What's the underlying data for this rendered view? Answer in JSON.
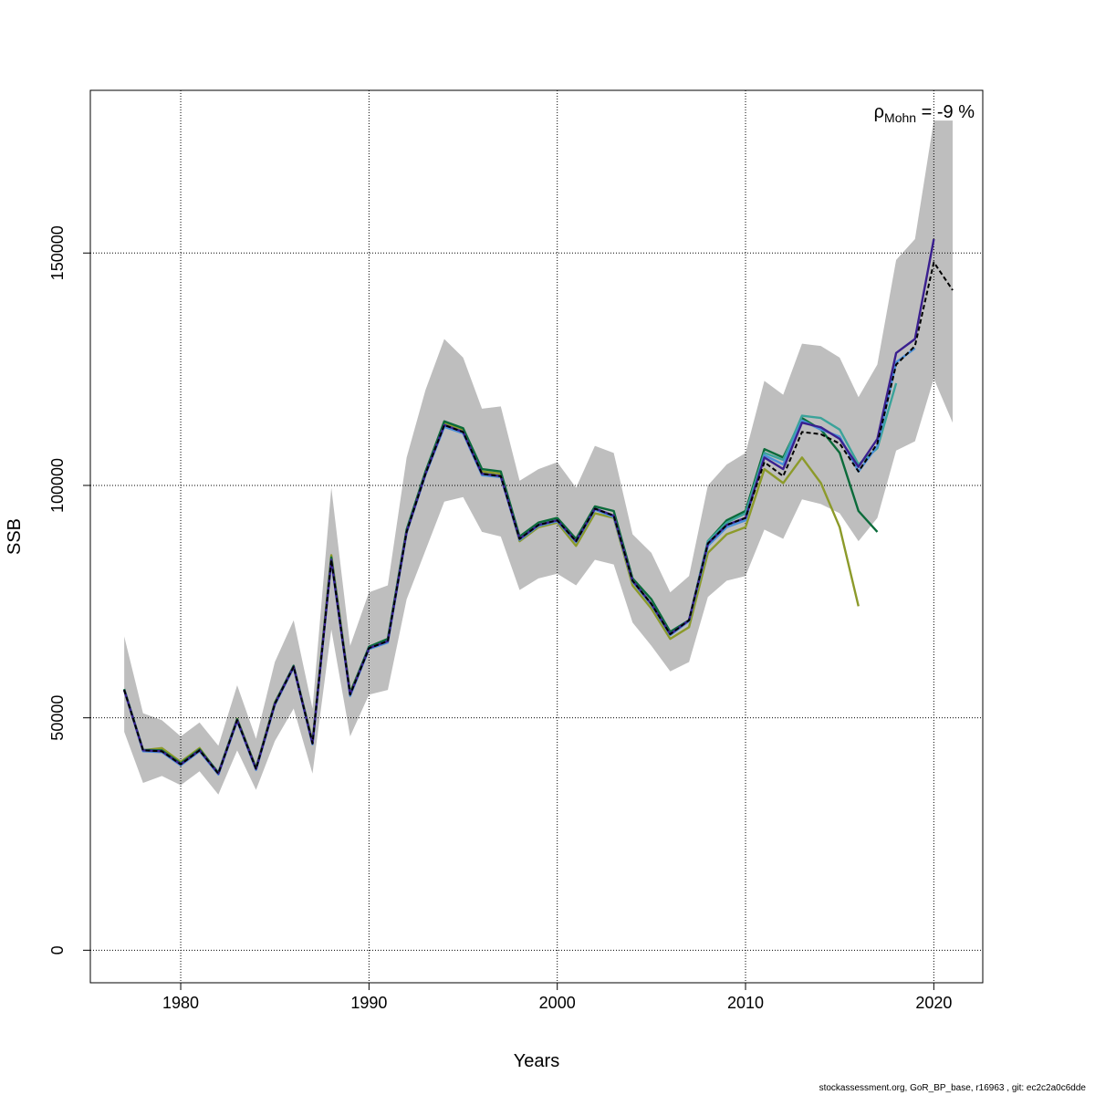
{
  "chart_data": {
    "type": "line",
    "xlabel": "Years",
    "ylabel": "SSB",
    "xlim": [
      1975.2,
      2022.6
    ],
    "ylim": [
      -7000,
      185000
    ],
    "x_ticks": [
      1980,
      1990,
      2000,
      2010,
      2020
    ],
    "y_ticks": [
      0,
      50000,
      100000,
      150000
    ],
    "x_tick_labels": [
      "1980",
      "1990",
      "2000",
      "2010",
      "2020"
    ],
    "y_tick_labels": [
      "0",
      "50000",
      "100000",
      "150000"
    ],
    "grid": true,
    "annotation": {
      "rho_symbol": "ρ",
      "rho_subscript": "Mohn",
      "rho_text": " = -9 %"
    },
    "confidence_band": {
      "color": "#bebebe",
      "x": [
        1977,
        1978,
        1979,
        1980,
        1981,
        1982,
        1983,
        1984,
        1985,
        1986,
        1987,
        1988,
        1989,
        1990,
        1991,
        1992,
        1993,
        1994,
        1995,
        1996,
        1997,
        1998,
        1999,
        2000,
        2001,
        2002,
        2003,
        2004,
        2005,
        2006,
        2007,
        2008,
        2009,
        2010,
        2011,
        2012,
        2013,
        2014,
        2015,
        2016,
        2017,
        2018,
        2019,
        2020,
        2021
      ],
      "upper": [
        67500,
        51000,
        49500,
        46000,
        49000,
        44000,
        57000,
        45500,
        62000,
        71000,
        52000,
        99500,
        65500,
        77000,
        78500,
        106000,
        120500,
        131500,
        127500,
        116500,
        117000,
        101000,
        103500,
        105000,
        99500,
        108500,
        107000,
        89500,
        85500,
        77000,
        80500,
        100000,
        104500,
        107000,
        122500,
        119500,
        130500,
        130000,
        127500,
        119000,
        126000,
        148500,
        153000,
        178500,
        178500
      ],
      "lower": [
        47000,
        36000,
        37500,
        35500,
        38500,
        33500,
        43000,
        34500,
        45000,
        52000,
        38000,
        69000,
        46000,
        55000,
        56000,
        75500,
        86000,
        96500,
        97500,
        90000,
        89000,
        77500,
        80000,
        81000,
        78500,
        84000,
        83000,
        70500,
        65500,
        60000,
        62000,
        76000,
        79500,
        80500,
        90500,
        88500,
        97000,
        96000,
        94000,
        88000,
        93000,
        107500,
        109500,
        123000,
        113500
      ]
    },
    "series": [
      {
        "color": "#000000",
        "dashed": true,
        "x": [
          1977,
          1978,
          1979,
          1980,
          1981,
          1982,
          1983,
          1984,
          1985,
          1986,
          1987,
          1988,
          1989,
          1990,
          1991,
          1992,
          1993,
          1994,
          1995,
          1996,
          1997,
          1998,
          1999,
          2000,
          2001,
          2002,
          2003,
          2004,
          2005,
          2006,
          2007,
          2008,
          2009,
          2010,
          2011,
          2012,
          2013,
          2014,
          2015,
          2016,
          2017,
          2018,
          2019,
          2020,
          2021
        ],
        "y": [
          56000,
          43000,
          42800,
          40000,
          43000,
          38000,
          49500,
          39000,
          53000,
          61000,
          44500,
          84000,
          55000,
          65000,
          66500,
          90000,
          102500,
          113000,
          111500,
          102500,
          102000,
          88500,
          91500,
          92500,
          88000,
          95000,
          93500,
          79500,
          74500,
          68000,
          71000,
          87500,
          91500,
          93000,
          105000,
          102000,
          111500,
          111000,
          109000,
          103000,
          109000,
          126000,
          130000,
          148000,
          142000
        ]
      },
      {
        "color": "#3a1f8f",
        "x": [
          1977,
          1978,
          1979,
          1980,
          1981,
          1982,
          1983,
          1984,
          1985,
          1986,
          1987,
          1988,
          1989,
          1990,
          1991,
          1992,
          1993,
          1994,
          1995,
          1996,
          1997,
          1998,
          1999,
          2000,
          2001,
          2002,
          2003,
          2004,
          2005,
          2006,
          2007,
          2008,
          2009,
          2010,
          2011,
          2012,
          2013,
          2014,
          2015,
          2016,
          2017,
          2018,
          2019,
          2020
        ],
        "y": [
          56000,
          43000,
          42800,
          40000,
          43000,
          38000,
          49500,
          39000,
          53000,
          61000,
          44500,
          84000,
          55000,
          65000,
          66500,
          90000,
          102500,
          113000,
          111500,
          102500,
          102000,
          88500,
          91500,
          92500,
          88000,
          95000,
          93500,
          79500,
          74500,
          68000,
          71000,
          87500,
          91500,
          93000,
          106000,
          103500,
          113500,
          112500,
          110000,
          104000,
          110000,
          128500,
          131500,
          153000
        ]
      },
      {
        "color": "#4a90d9",
        "x": [
          1977,
          1978,
          1979,
          1980,
          1981,
          1982,
          1983,
          1984,
          1985,
          1986,
          1987,
          1988,
          1989,
          1990,
          1991,
          1992,
          1993,
          1994,
          1995,
          1996,
          1997,
          1998,
          1999,
          2000,
          2001,
          2002,
          2003,
          2004,
          2005,
          2006,
          2007,
          2008,
          2009,
          2010,
          2011,
          2012,
          2013,
          2014,
          2015,
          2016,
          2017,
          2018,
          2019
        ],
        "y": [
          56000,
          42800,
          42600,
          39800,
          42800,
          37800,
          49300,
          38800,
          52800,
          60800,
          44300,
          83800,
          54700,
          64800,
          66200,
          89800,
          102300,
          112600,
          111200,
          102200,
          101800,
          88300,
          91300,
          92300,
          87800,
          94800,
          93200,
          79300,
          74300,
          67800,
          70800,
          87000,
          91000,
          92500,
          106500,
          104500,
          114000,
          112000,
          110500,
          103000,
          108500,
          126500,
          129500
        ]
      },
      {
        "color": "#3aa39a",
        "x": [
          1977,
          1978,
          1979,
          1980,
          1981,
          1982,
          1983,
          1984,
          1985,
          1986,
          1987,
          1988,
          1989,
          1990,
          1991,
          1992,
          1993,
          1994,
          1995,
          1996,
          1997,
          1998,
          1999,
          2000,
          2001,
          2002,
          2003,
          2004,
          2005,
          2006,
          2007,
          2008,
          2009,
          2010,
          2011,
          2012,
          2013,
          2014,
          2015,
          2016,
          2017,
          2018
        ],
        "y": [
          56000,
          43000,
          42800,
          40000,
          43000,
          38000,
          49500,
          39000,
          53000,
          61000,
          44500,
          84000,
          55000,
          65000,
          66500,
          90000,
          102500,
          113000,
          111500,
          102500,
          102000,
          88500,
          91500,
          92500,
          88000,
          95000,
          93500,
          79500,
          74500,
          68000,
          71000,
          88000,
          92000,
          94000,
          107000,
          105500,
          115000,
          114500,
          112000,
          104500,
          108000,
          122000
        ]
      },
      {
        "color": "#0b6b3a",
        "x": [
          1977,
          1978,
          1979,
          1980,
          1981,
          1982,
          1983,
          1984,
          1985,
          1986,
          1987,
          1988,
          1989,
          1990,
          1991,
          1992,
          1993,
          1994,
          1995,
          1996,
          1997,
          1998,
          1999,
          2000,
          2001,
          2002,
          2003,
          2004,
          2005,
          2006,
          2007,
          2008,
          2009,
          2010,
          2011,
          2012,
          2013,
          2014,
          2015,
          2016,
          2017
        ],
        "y": [
          56200,
          43100,
          43000,
          40200,
          43200,
          38200,
          49700,
          39200,
          53200,
          61200,
          44700,
          84500,
          55300,
          65300,
          67000,
          90500,
          103000,
          113800,
          112300,
          103500,
          103000,
          89000,
          92000,
          93000,
          88500,
          95500,
          94500,
          80000,
          75500,
          68500,
          71000,
          88000,
          92500,
          94500,
          107800,
          106000,
          114500,
          112000,
          107000,
          94500,
          90000
        ]
      },
      {
        "color": "#8c9a2a",
        "x": [
          1977,
          1978,
          1979,
          1980,
          1981,
          1982,
          1983,
          1984,
          1985,
          1986,
          1987,
          1988,
          1989,
          1990,
          1991,
          1992,
          1993,
          1994,
          1995,
          1996,
          1997,
          1998,
          1999,
          2000,
          2001,
          2002,
          2003,
          2004,
          2005,
          2006,
          2007,
          2008,
          2009,
          2010,
          2011,
          2012,
          2013,
          2014,
          2015,
          2016
        ],
        "y": [
          56000,
          43000,
          43500,
          40500,
          43500,
          38000,
          49800,
          39300,
          53300,
          61000,
          45000,
          85000,
          55500,
          65000,
          67000,
          90000,
          102500,
          113500,
          112000,
          103000,
          102500,
          88000,
          91000,
          92000,
          87000,
          94000,
          93000,
          78500,
          73500,
          67000,
          69500,
          85500,
          89500,
          91000,
          103500,
          100500,
          106000,
          100500,
          91000,
          74000
        ]
      }
    ]
  },
  "footer": "stockassessment.org, GoR_BP_base, r16963 , git: ec2c2a0c6dde"
}
